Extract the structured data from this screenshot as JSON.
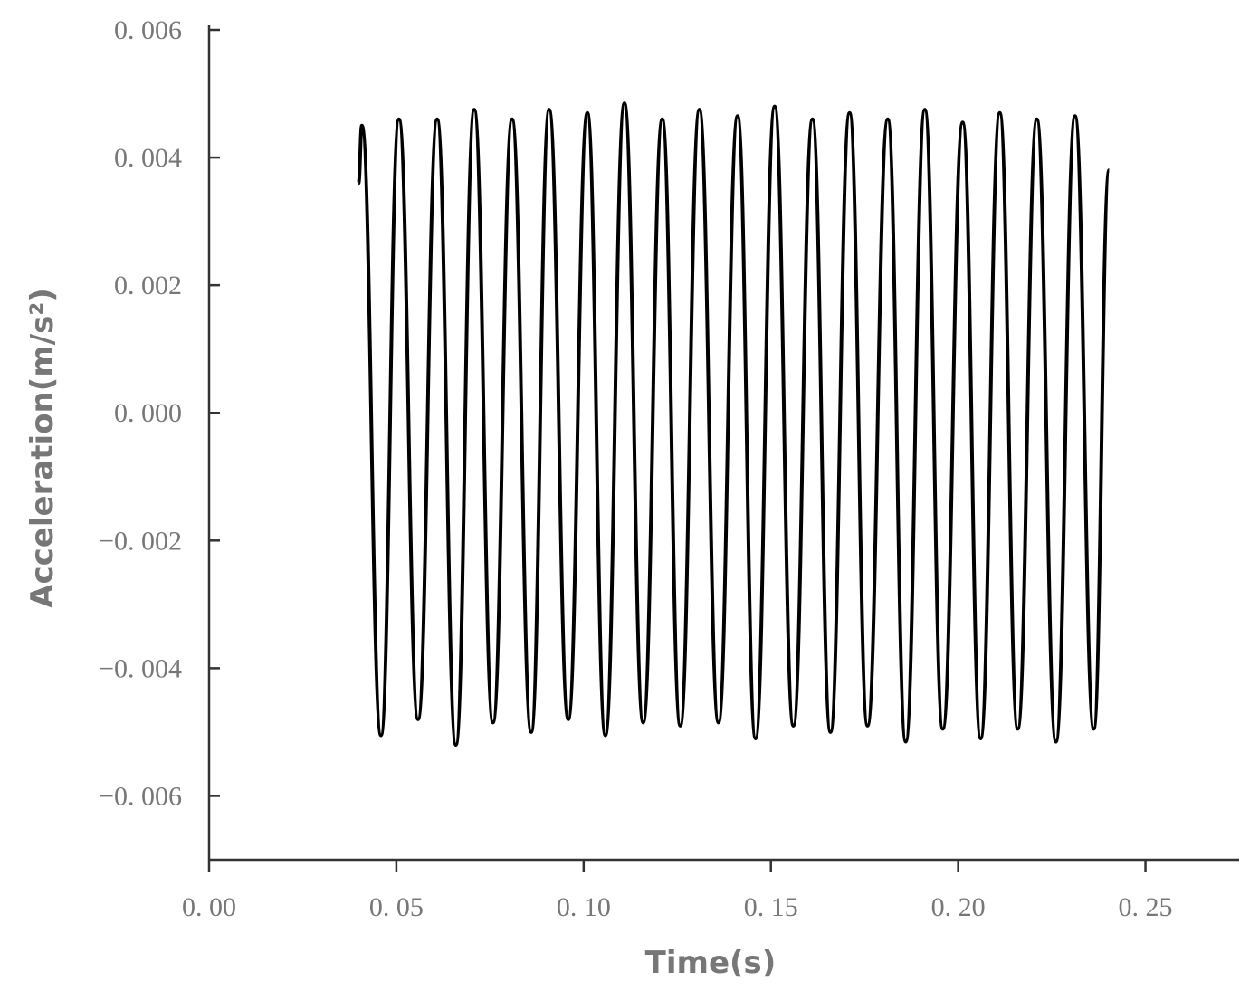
{
  "chart_data": {
    "type": "line",
    "x_label": "Time(s)",
    "y_label": "Acceleration(m/s²)",
    "xlim": [
      0,
      0.275
    ],
    "ylim": [
      -0.007,
      0.006
    ],
    "xticks": [
      {
        "value": 0,
        "label": "0. 00"
      },
      {
        "value": 0.05,
        "label": "0. 05"
      },
      {
        "value": 0.1,
        "label": "0. 10"
      },
      {
        "value": 0.15,
        "label": "0. 15"
      },
      {
        "value": 0.2,
        "label": "0. 20"
      },
      {
        "value": 0.25,
        "label": "0. 25"
      }
    ],
    "yticks": [
      {
        "value": -0.006,
        "label": "−0. 006"
      },
      {
        "value": -0.004,
        "label": "−0. 004"
      },
      {
        "value": -0.002,
        "label": "−0. 002"
      },
      {
        "value": 0,
        "label": "0. 000"
      },
      {
        "value": 0.002,
        "label": "0. 002"
      },
      {
        "value": 0.004,
        "label": "0. 004"
      },
      {
        "value": 0.006,
        "label": "0. 006"
      }
    ],
    "grid": false,
    "series": [
      {
        "color": "#000000",
        "x": [
          0.0399,
          0.0408,
          0.0459,
          0.0507,
          0.0558,
          0.0609,
          0.0659,
          0.0708,
          0.0758,
          0.0809,
          0.086,
          0.0908,
          0.0959,
          0.101,
          0.1058,
          0.1109,
          0.1159,
          0.121,
          0.1258,
          0.1309,
          0.136,
          0.1411,
          0.1459,
          0.151,
          0.156,
          0.1611,
          0.1659,
          0.171,
          0.1758,
          0.1812,
          0.186,
          0.1911,
          0.1959,
          0.2012,
          0.206,
          0.2111,
          0.2159,
          0.221,
          0.2261,
          0.2312,
          0.2362,
          0.2403
        ],
        "values": [
          0.0036,
          0.0045,
          -0.00505,
          0.0046,
          -0.0048,
          0.0046,
          -0.0052,
          0.00475,
          -0.00485,
          0.0046,
          -0.005,
          0.00475,
          -0.0048,
          0.0047,
          -0.00505,
          0.00485,
          -0.00485,
          0.0046,
          -0.0049,
          0.00475,
          -0.00485,
          0.00465,
          -0.0051,
          0.0048,
          -0.0049,
          0.0046,
          -0.005,
          0.0047,
          -0.0049,
          0.0046,
          -0.00515,
          0.00475,
          -0.00495,
          0.00455,
          -0.0051,
          0.0047,
          -0.00495,
          0.0046,
          -0.00515,
          0.00465,
          -0.00495,
          0.0038
        ]
      }
    ]
  }
}
